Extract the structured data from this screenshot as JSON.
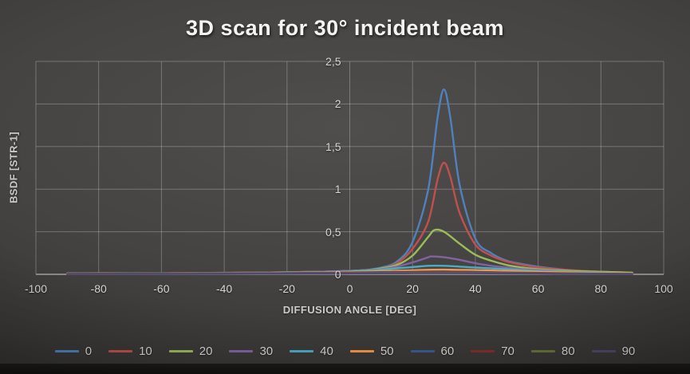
{
  "title": "3D scan for 30° incident beam",
  "chart_data": {
    "type": "line",
    "title": "3D scan for 30° incident beam",
    "xlabel": "DIFFUSION ANGLE [DEG]",
    "ylabel": "BSDF [STR-1]",
    "xlim": [
      -100,
      100
    ],
    "ylim": [
      0,
      2.5
    ],
    "decimal_separator": ",",
    "grid": true,
    "legend_position": "bottom",
    "x_ticks": [
      {
        "label": "-100",
        "value": -100
      },
      {
        "label": "-80",
        "value": -80
      },
      {
        "label": "-60",
        "value": -60
      },
      {
        "label": "-40",
        "value": -40
      },
      {
        "label": "-20",
        "value": -20
      },
      {
        "label": "0",
        "value": 0
      },
      {
        "label": "20",
        "value": 20
      },
      {
        "label": "40",
        "value": 40
      },
      {
        "label": "60",
        "value": 60
      },
      {
        "label": "80",
        "value": 80
      },
      {
        "label": "100",
        "value": 100
      }
    ],
    "y_ticks": [
      {
        "label": "0",
        "value": 0
      },
      {
        "label": "0,5",
        "value": 0.5
      },
      {
        "label": "1",
        "value": 1
      },
      {
        "label": "1,5",
        "value": 1.5
      },
      {
        "label": "2",
        "value": 2
      },
      {
        "label": "2,5",
        "value": 2.5
      }
    ],
    "series": [
      {
        "name": "0",
        "color": "#4F81BD",
        "peak": {
          "x": 30,
          "y": 2.17
        },
        "points": [
          [
            -90,
            0.01
          ],
          [
            -80,
            0.01
          ],
          [
            -70,
            0.01
          ],
          [
            -60,
            0.012
          ],
          [
            -50,
            0.015
          ],
          [
            -40,
            0.018
          ],
          [
            -30,
            0.02
          ],
          [
            -20,
            0.025
          ],
          [
            -10,
            0.03
          ],
          [
            0,
            0.04
          ],
          [
            5,
            0.05
          ],
          [
            10,
            0.08
          ],
          [
            15,
            0.15
          ],
          [
            20,
            0.38
          ],
          [
            25,
            1.0
          ],
          [
            28,
            1.85
          ],
          [
            30,
            2.17
          ],
          [
            32,
            1.85
          ],
          [
            35,
            1.05
          ],
          [
            40,
            0.42
          ],
          [
            45,
            0.25
          ],
          [
            50,
            0.16
          ],
          [
            55,
            0.12
          ],
          [
            60,
            0.09
          ],
          [
            70,
            0.05
          ],
          [
            80,
            0.03
          ],
          [
            90,
            0.02
          ]
        ]
      },
      {
        "name": "10",
        "color": "#C0504D",
        "peak": {
          "x": 30,
          "y": 1.31
        },
        "points": [
          [
            -90,
            0.01
          ],
          [
            -80,
            0.01
          ],
          [
            -70,
            0.01
          ],
          [
            -60,
            0.012
          ],
          [
            -50,
            0.015
          ],
          [
            -40,
            0.018
          ],
          [
            -30,
            0.02
          ],
          [
            -20,
            0.025
          ],
          [
            -10,
            0.03
          ],
          [
            0,
            0.04
          ],
          [
            5,
            0.05
          ],
          [
            10,
            0.07
          ],
          [
            15,
            0.13
          ],
          [
            20,
            0.3
          ],
          [
            25,
            0.62
          ],
          [
            28,
            1.12
          ],
          [
            30,
            1.31
          ],
          [
            32,
            1.15
          ],
          [
            35,
            0.72
          ],
          [
            40,
            0.35
          ],
          [
            45,
            0.22
          ],
          [
            50,
            0.15
          ],
          [
            55,
            0.11
          ],
          [
            60,
            0.08
          ],
          [
            70,
            0.05
          ],
          [
            80,
            0.03
          ],
          [
            90,
            0.02
          ]
        ]
      },
      {
        "name": "20",
        "color": "#9BBB59",
        "peak": {
          "x": 27,
          "y": 0.52
        },
        "points": [
          [
            -90,
            0.01
          ],
          [
            -80,
            0.01
          ],
          [
            -70,
            0.01
          ],
          [
            -60,
            0.012
          ],
          [
            -50,
            0.014
          ],
          [
            -40,
            0.016
          ],
          [
            -30,
            0.02
          ],
          [
            -20,
            0.024
          ],
          [
            -10,
            0.03
          ],
          [
            0,
            0.04
          ],
          [
            5,
            0.05
          ],
          [
            10,
            0.07
          ],
          [
            15,
            0.11
          ],
          [
            20,
            0.22
          ],
          [
            25,
            0.44
          ],
          [
            27,
            0.52
          ],
          [
            30,
            0.5
          ],
          [
            35,
            0.36
          ],
          [
            40,
            0.23
          ],
          [
            45,
            0.16
          ],
          [
            50,
            0.11
          ],
          [
            55,
            0.08
          ],
          [
            60,
            0.06
          ],
          [
            70,
            0.04
          ],
          [
            80,
            0.03
          ],
          [
            90,
            0.02
          ]
        ]
      },
      {
        "name": "30",
        "color": "#8064A2",
        "peak": {
          "x": 26,
          "y": 0.21
        },
        "points": [
          [
            -90,
            0.01
          ],
          [
            -80,
            0.01
          ],
          [
            -70,
            0.01
          ],
          [
            -60,
            0.012
          ],
          [
            -50,
            0.014
          ],
          [
            -40,
            0.016
          ],
          [
            -30,
            0.02
          ],
          [
            -20,
            0.024
          ],
          [
            -10,
            0.03
          ],
          [
            0,
            0.04
          ],
          [
            5,
            0.05
          ],
          [
            10,
            0.06
          ],
          [
            15,
            0.09
          ],
          [
            20,
            0.14
          ],
          [
            25,
            0.2
          ],
          [
            26,
            0.21
          ],
          [
            30,
            0.2
          ],
          [
            35,
            0.17
          ],
          [
            40,
            0.13
          ],
          [
            45,
            0.1
          ],
          [
            50,
            0.08
          ],
          [
            55,
            0.06
          ],
          [
            60,
            0.05
          ],
          [
            70,
            0.03
          ],
          [
            80,
            0.02
          ],
          [
            90,
            0.01
          ]
        ]
      },
      {
        "name": "40",
        "color": "#4BACC6",
        "peak": {
          "x": 25,
          "y": 0.1
        },
        "points": [
          [
            -90,
            0.008
          ],
          [
            -80,
            0.009
          ],
          [
            -70,
            0.01
          ],
          [
            -60,
            0.011
          ],
          [
            -50,
            0.012
          ],
          [
            -40,
            0.014
          ],
          [
            -30,
            0.016
          ],
          [
            -20,
            0.02
          ],
          [
            -10,
            0.025
          ],
          [
            0,
            0.035
          ],
          [
            5,
            0.045
          ],
          [
            10,
            0.055
          ],
          [
            15,
            0.07
          ],
          [
            20,
            0.085
          ],
          [
            25,
            0.1
          ],
          [
            30,
            0.1
          ],
          [
            35,
            0.09
          ],
          [
            40,
            0.08
          ],
          [
            45,
            0.07
          ],
          [
            50,
            0.06
          ],
          [
            55,
            0.05
          ],
          [
            60,
            0.04
          ],
          [
            70,
            0.03
          ],
          [
            80,
            0.02
          ],
          [
            90,
            0.01
          ]
        ]
      },
      {
        "name": "50",
        "color": "#F79646",
        "peak": {
          "x": 28,
          "y": 0.055
        },
        "points": [
          [
            -90,
            0.008
          ],
          [
            -80,
            0.009
          ],
          [
            -70,
            0.01
          ],
          [
            -60,
            0.011
          ],
          [
            -50,
            0.012
          ],
          [
            -40,
            0.013
          ],
          [
            -30,
            0.015
          ],
          [
            -20,
            0.018
          ],
          [
            -10,
            0.022
          ],
          [
            0,
            0.028
          ],
          [
            5,
            0.032
          ],
          [
            10,
            0.038
          ],
          [
            15,
            0.042
          ],
          [
            20,
            0.048
          ],
          [
            25,
            0.053
          ],
          [
            30,
            0.055
          ],
          [
            35,
            0.052
          ],
          [
            40,
            0.05
          ],
          [
            45,
            0.045
          ],
          [
            50,
            0.04
          ],
          [
            55,
            0.035
          ],
          [
            60,
            0.03
          ],
          [
            70,
            0.022
          ],
          [
            80,
            0.015
          ],
          [
            90,
            0.01
          ]
        ]
      },
      {
        "name": "60",
        "color": "#3C5C94",
        "peak": {
          "x": 28,
          "y": 0.032
        },
        "points": [
          [
            -90,
            0.006
          ],
          [
            -70,
            0.008
          ],
          [
            -50,
            0.01
          ],
          [
            -30,
            0.013
          ],
          [
            -10,
            0.018
          ],
          [
            0,
            0.022
          ],
          [
            10,
            0.026
          ],
          [
            20,
            0.03
          ],
          [
            25,
            0.032
          ],
          [
            30,
            0.032
          ],
          [
            40,
            0.028
          ],
          [
            50,
            0.022
          ],
          [
            60,
            0.017
          ],
          [
            70,
            0.012
          ],
          [
            80,
            0.008
          ],
          [
            90,
            0.005
          ]
        ]
      },
      {
        "name": "70",
        "color": "#83302D",
        "peak": {
          "x": 30,
          "y": 0.025
        },
        "points": [
          [
            -90,
            0.005
          ],
          [
            -70,
            0.007
          ],
          [
            -50,
            0.009
          ],
          [
            -30,
            0.011
          ],
          [
            -10,
            0.015
          ],
          [
            0,
            0.018
          ],
          [
            10,
            0.021
          ],
          [
            20,
            0.024
          ],
          [
            30,
            0.025
          ],
          [
            40,
            0.022
          ],
          [
            50,
            0.018
          ],
          [
            60,
            0.014
          ],
          [
            70,
            0.01
          ],
          [
            80,
            0.007
          ],
          [
            90,
            0.004
          ]
        ]
      },
      {
        "name": "80",
        "color": "#67763A",
        "peak": {
          "x": 28,
          "y": 0.018
        },
        "points": [
          [
            -90,
            0.004
          ],
          [
            -70,
            0.006
          ],
          [
            -50,
            0.008
          ],
          [
            -30,
            0.01
          ],
          [
            -10,
            0.012
          ],
          [
            0,
            0.014
          ],
          [
            10,
            0.016
          ],
          [
            20,
            0.018
          ],
          [
            30,
            0.018
          ],
          [
            40,
            0.016
          ],
          [
            50,
            0.013
          ],
          [
            60,
            0.01
          ],
          [
            70,
            0.008
          ],
          [
            80,
            0.005
          ],
          [
            90,
            0.003
          ]
        ]
      },
      {
        "name": "90",
        "color": "#51486E",
        "peak": {
          "x": 27,
          "y": 0.013
        },
        "points": [
          [
            -90,
            0.003
          ],
          [
            -70,
            0.005
          ],
          [
            -50,
            0.006
          ],
          [
            -30,
            0.008
          ],
          [
            -10,
            0.01
          ],
          [
            0,
            0.011
          ],
          [
            10,
            0.012
          ],
          [
            20,
            0.013
          ],
          [
            30,
            0.013
          ],
          [
            40,
            0.012
          ],
          [
            50,
            0.01
          ],
          [
            60,
            0.008
          ],
          [
            70,
            0.006
          ],
          [
            80,
            0.004
          ],
          [
            90,
            0.003
          ]
        ]
      }
    ]
  },
  "style_colors": {
    "gridline": "rgba(255,255,255,0.26)",
    "zero_line": "#a3a2a1",
    "tick_text": "#d6d5d4",
    "title_text": "#f4f3f2"
  }
}
